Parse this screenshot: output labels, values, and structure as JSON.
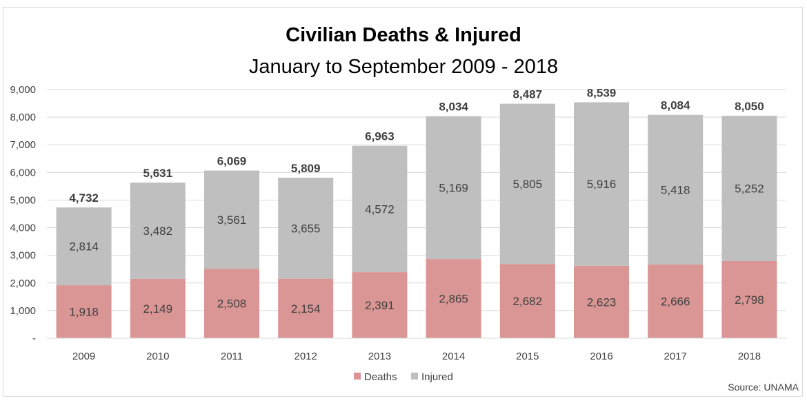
{
  "chart_data": {
    "type": "bar",
    "stacked": true,
    "title": "Civilian Deaths & Injured",
    "subtitle": "January to September 2009 - 2018",
    "categories": [
      "2009",
      "2010",
      "2011",
      "2012",
      "2013",
      "2014",
      "2015",
      "2016",
      "2017",
      "2018"
    ],
    "series": [
      {
        "name": "Deaths",
        "color": "#d99694",
        "values": [
          1918,
          2149,
          2508,
          2154,
          2391,
          2865,
          2682,
          2623,
          2666,
          2798
        ]
      },
      {
        "name": "Injured",
        "color": "#bfbfbf",
        "values": [
          2814,
          3482,
          3561,
          3655,
          4572,
          5169,
          5805,
          5916,
          5418,
          5252
        ]
      }
    ],
    "totals": [
      4732,
      5631,
      6069,
      5809,
      6963,
      8034,
      8487,
      8539,
      8084,
      8050
    ],
    "ylim": [
      0,
      9000
    ],
    "yticks": [
      "-",
      "1,000",
      "2,000",
      "3,000",
      "4,000",
      "5,000",
      "6,000",
      "7,000",
      "8,000",
      "9,000"
    ],
    "grid": true,
    "legend_position": "bottom",
    "source": "Source: UNAMA"
  }
}
